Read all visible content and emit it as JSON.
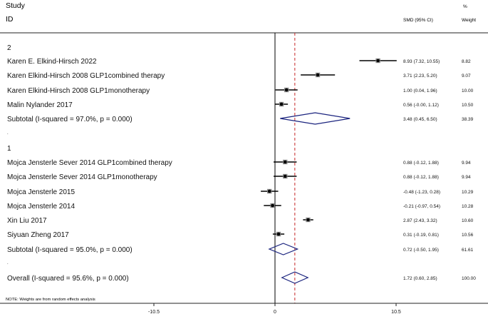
{
  "header": {
    "study_label": "Study",
    "id_label": "ID",
    "smd_label": "SMD (95% CI)",
    "pct_label": "%",
    "weight_label": "Weight"
  },
  "note": "NOTE: Weights are from random effects analysis",
  "colors": {
    "diamond": "#1a237e",
    "null_line": "#000000",
    "overall_line": "#c62828",
    "marker": "#000000"
  },
  "chart_data": {
    "type": "forest",
    "measure": "SMD",
    "xlim": [
      -15.5,
      18.0
    ],
    "xticks": [
      -10.5,
      0,
      10.5
    ],
    "xtick_labels": [
      "-10.5",
      "0",
      "10.5"
    ],
    "overall_line_value": 1.72,
    "rows": [
      {
        "kind": "group",
        "label": "2"
      },
      {
        "kind": "study",
        "label": "Karen E. Elkind-Hirsch 2022",
        "est": 8.93,
        "lo": 7.32,
        "hi": 10.55,
        "ci_text": "8.93 (7.32, 10.55)",
        "weight": "8.82"
      },
      {
        "kind": "study",
        "label": "Karen Elkind-Hirsch 2008 GLP1combined therapy",
        "est": 3.71,
        "lo": 2.23,
        "hi": 5.2,
        "ci_text": "3.71 (2.23, 5.20)",
        "weight": "9.07"
      },
      {
        "kind": "study",
        "label": "Karen Elkind-Hirsch 2008 GLP1monotherapy",
        "est": 1.0,
        "lo": 0.04,
        "hi": 1.96,
        "ci_text": "1.00 (0.04, 1.96)",
        "weight": "10.00"
      },
      {
        "kind": "study",
        "label": "Malin Nylander 2017",
        "est": 0.56,
        "lo": -0.0,
        "hi": 1.12,
        "ci_text": "0.56 (-0.00, 1.12)",
        "weight": "10.50"
      },
      {
        "kind": "subtotal",
        "label": "Subtotal  (I-squared = 97.0%, p = 0.000)",
        "est": 3.48,
        "lo": 0.45,
        "hi": 6.5,
        "ci_text": "3.48 (0.45, 6.50)",
        "weight": "38.39"
      },
      {
        "kind": "spacer",
        "label": "."
      },
      {
        "kind": "group",
        "label": "1"
      },
      {
        "kind": "study",
        "label": "Mojca Jensterle Sever 2014 GLP1combined therapy",
        "est": 0.88,
        "lo": -0.12,
        "hi": 1.88,
        "ci_text": "0.88 (-0.12, 1.88)",
        "weight": "9.94"
      },
      {
        "kind": "study",
        "label": "Mojca Jensterle Sever 2014 GLP1monotherapy",
        "est": 0.88,
        "lo": -0.12,
        "hi": 1.88,
        "ci_text": "0.88 (-0.12, 1.88)",
        "weight": "9.94"
      },
      {
        "kind": "study",
        "label": "Mojca Jensterle 2015",
        "est": -0.48,
        "lo": -1.23,
        "hi": 0.28,
        "ci_text": "-0.48 (-1.23, 0.28)",
        "weight": "10.29"
      },
      {
        "kind": "study",
        "label": "Mojca Jensterle 2014",
        "est": -0.21,
        "lo": -0.97,
        "hi": 0.54,
        "ci_text": "-0.21 (-0.97, 0.54)",
        "weight": "10.28"
      },
      {
        "kind": "study",
        "label": "Xin Liu 2017",
        "est": 2.87,
        "lo": 2.43,
        "hi": 3.32,
        "ci_text": "2.87 (2.43, 3.32)",
        "weight": "10.60"
      },
      {
        "kind": "study",
        "label": "Siyuan Zheng 2017",
        "est": 0.31,
        "lo": -0.19,
        "hi": 0.81,
        "ci_text": "0.31 (-0.19, 0.81)",
        "weight": "10.56"
      },
      {
        "kind": "subtotal",
        "label": "Subtotal  (I-squared = 95.0%, p = 0.000)",
        "est": 0.72,
        "lo": -0.5,
        "hi": 1.95,
        "ci_text": "0.72 (-0.50, 1.95)",
        "weight": "61.61"
      },
      {
        "kind": "spacer",
        "label": "."
      },
      {
        "kind": "overall",
        "label": "Overall  (I-squared = 95.6%, p = 0.000)",
        "est": 1.72,
        "lo": 0.6,
        "hi": 2.85,
        "ci_text": "1.72 (0.60, 2.85)",
        "weight": "100.00"
      }
    ]
  }
}
